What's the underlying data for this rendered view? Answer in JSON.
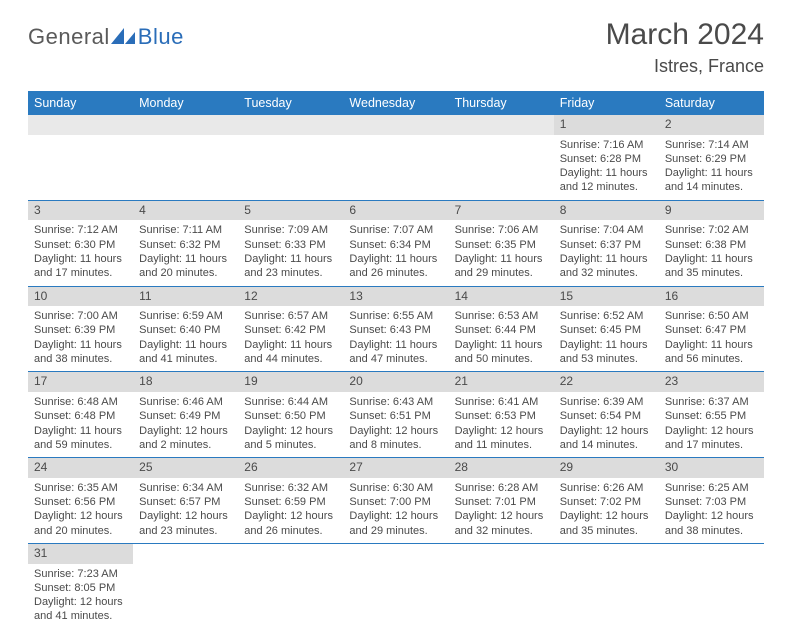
{
  "brand": {
    "part1": "General",
    "part2": "Blue",
    "logo_color": "#2a6db8"
  },
  "title": "March 2024",
  "location": "Istres, France",
  "header_bg": "#2a7ac0",
  "daybar_bg": "#dcdcdc",
  "rule_color": "#2a7ac0",
  "weekdays": [
    "Sunday",
    "Monday",
    "Tuesday",
    "Wednesday",
    "Thursday",
    "Friday",
    "Saturday"
  ],
  "weeks": [
    [
      null,
      null,
      null,
      null,
      null,
      {
        "n": "1",
        "sr": "Sunrise: 7:16 AM",
        "ss": "Sunset: 6:28 PM",
        "d1": "Daylight: 11 hours",
        "d2": "and 12 minutes."
      },
      {
        "n": "2",
        "sr": "Sunrise: 7:14 AM",
        "ss": "Sunset: 6:29 PM",
        "d1": "Daylight: 11 hours",
        "d2": "and 14 minutes."
      }
    ],
    [
      {
        "n": "3",
        "sr": "Sunrise: 7:12 AM",
        "ss": "Sunset: 6:30 PM",
        "d1": "Daylight: 11 hours",
        "d2": "and 17 minutes."
      },
      {
        "n": "4",
        "sr": "Sunrise: 7:11 AM",
        "ss": "Sunset: 6:32 PM",
        "d1": "Daylight: 11 hours",
        "d2": "and 20 minutes."
      },
      {
        "n": "5",
        "sr": "Sunrise: 7:09 AM",
        "ss": "Sunset: 6:33 PM",
        "d1": "Daylight: 11 hours",
        "d2": "and 23 minutes."
      },
      {
        "n": "6",
        "sr": "Sunrise: 7:07 AM",
        "ss": "Sunset: 6:34 PM",
        "d1": "Daylight: 11 hours",
        "d2": "and 26 minutes."
      },
      {
        "n": "7",
        "sr": "Sunrise: 7:06 AM",
        "ss": "Sunset: 6:35 PM",
        "d1": "Daylight: 11 hours",
        "d2": "and 29 minutes."
      },
      {
        "n": "8",
        "sr": "Sunrise: 7:04 AM",
        "ss": "Sunset: 6:37 PM",
        "d1": "Daylight: 11 hours",
        "d2": "and 32 minutes."
      },
      {
        "n": "9",
        "sr": "Sunrise: 7:02 AM",
        "ss": "Sunset: 6:38 PM",
        "d1": "Daylight: 11 hours",
        "d2": "and 35 minutes."
      }
    ],
    [
      {
        "n": "10",
        "sr": "Sunrise: 7:00 AM",
        "ss": "Sunset: 6:39 PM",
        "d1": "Daylight: 11 hours",
        "d2": "and 38 minutes."
      },
      {
        "n": "11",
        "sr": "Sunrise: 6:59 AM",
        "ss": "Sunset: 6:40 PM",
        "d1": "Daylight: 11 hours",
        "d2": "and 41 minutes."
      },
      {
        "n": "12",
        "sr": "Sunrise: 6:57 AM",
        "ss": "Sunset: 6:42 PM",
        "d1": "Daylight: 11 hours",
        "d2": "and 44 minutes."
      },
      {
        "n": "13",
        "sr": "Sunrise: 6:55 AM",
        "ss": "Sunset: 6:43 PM",
        "d1": "Daylight: 11 hours",
        "d2": "and 47 minutes."
      },
      {
        "n": "14",
        "sr": "Sunrise: 6:53 AM",
        "ss": "Sunset: 6:44 PM",
        "d1": "Daylight: 11 hours",
        "d2": "and 50 minutes."
      },
      {
        "n": "15",
        "sr": "Sunrise: 6:52 AM",
        "ss": "Sunset: 6:45 PM",
        "d1": "Daylight: 11 hours",
        "d2": "and 53 minutes."
      },
      {
        "n": "16",
        "sr": "Sunrise: 6:50 AM",
        "ss": "Sunset: 6:47 PM",
        "d1": "Daylight: 11 hours",
        "d2": "and 56 minutes."
      }
    ],
    [
      {
        "n": "17",
        "sr": "Sunrise: 6:48 AM",
        "ss": "Sunset: 6:48 PM",
        "d1": "Daylight: 11 hours",
        "d2": "and 59 minutes."
      },
      {
        "n": "18",
        "sr": "Sunrise: 6:46 AM",
        "ss": "Sunset: 6:49 PM",
        "d1": "Daylight: 12 hours",
        "d2": "and 2 minutes."
      },
      {
        "n": "19",
        "sr": "Sunrise: 6:44 AM",
        "ss": "Sunset: 6:50 PM",
        "d1": "Daylight: 12 hours",
        "d2": "and 5 minutes."
      },
      {
        "n": "20",
        "sr": "Sunrise: 6:43 AM",
        "ss": "Sunset: 6:51 PM",
        "d1": "Daylight: 12 hours",
        "d2": "and 8 minutes."
      },
      {
        "n": "21",
        "sr": "Sunrise: 6:41 AM",
        "ss": "Sunset: 6:53 PM",
        "d1": "Daylight: 12 hours",
        "d2": "and 11 minutes."
      },
      {
        "n": "22",
        "sr": "Sunrise: 6:39 AM",
        "ss": "Sunset: 6:54 PM",
        "d1": "Daylight: 12 hours",
        "d2": "and 14 minutes."
      },
      {
        "n": "23",
        "sr": "Sunrise: 6:37 AM",
        "ss": "Sunset: 6:55 PM",
        "d1": "Daylight: 12 hours",
        "d2": "and 17 minutes."
      }
    ],
    [
      {
        "n": "24",
        "sr": "Sunrise: 6:35 AM",
        "ss": "Sunset: 6:56 PM",
        "d1": "Daylight: 12 hours",
        "d2": "and 20 minutes."
      },
      {
        "n": "25",
        "sr": "Sunrise: 6:34 AM",
        "ss": "Sunset: 6:57 PM",
        "d1": "Daylight: 12 hours",
        "d2": "and 23 minutes."
      },
      {
        "n": "26",
        "sr": "Sunrise: 6:32 AM",
        "ss": "Sunset: 6:59 PM",
        "d1": "Daylight: 12 hours",
        "d2": "and 26 minutes."
      },
      {
        "n": "27",
        "sr": "Sunrise: 6:30 AM",
        "ss": "Sunset: 7:00 PM",
        "d1": "Daylight: 12 hours",
        "d2": "and 29 minutes."
      },
      {
        "n": "28",
        "sr": "Sunrise: 6:28 AM",
        "ss": "Sunset: 7:01 PM",
        "d1": "Daylight: 12 hours",
        "d2": "and 32 minutes."
      },
      {
        "n": "29",
        "sr": "Sunrise: 6:26 AM",
        "ss": "Sunset: 7:02 PM",
        "d1": "Daylight: 12 hours",
        "d2": "and 35 minutes."
      },
      {
        "n": "30",
        "sr": "Sunrise: 6:25 AM",
        "ss": "Sunset: 7:03 PM",
        "d1": "Daylight: 12 hours",
        "d2": "and 38 minutes."
      }
    ],
    [
      {
        "n": "31",
        "sr": "Sunrise: 7:23 AM",
        "ss": "Sunset: 8:05 PM",
        "d1": "Daylight: 12 hours",
        "d2": "and 41 minutes."
      },
      null,
      null,
      null,
      null,
      null,
      null
    ]
  ]
}
